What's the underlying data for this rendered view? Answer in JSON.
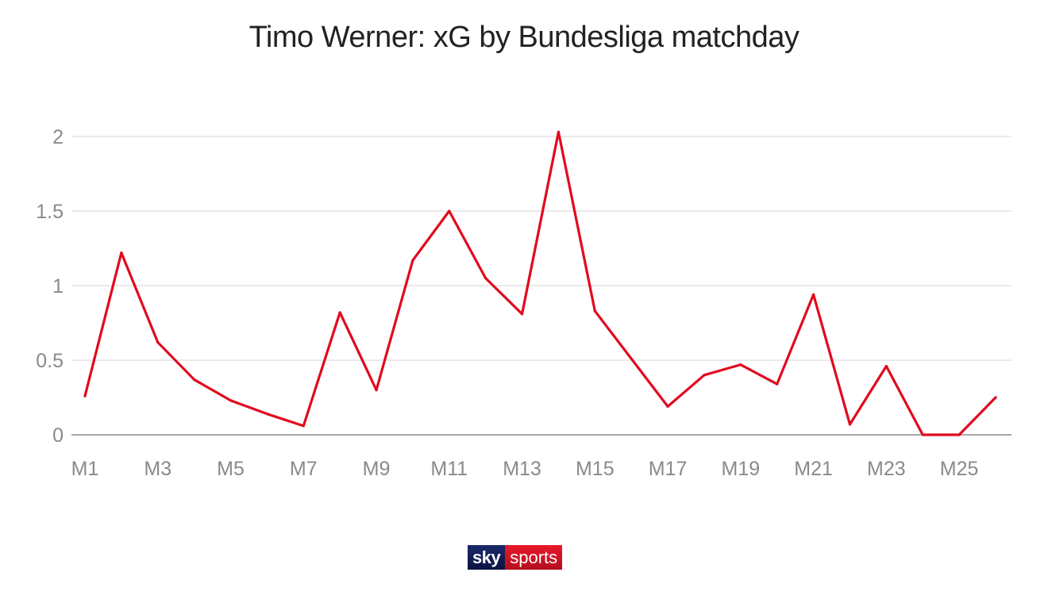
{
  "chart_data": {
    "type": "line",
    "title": "Timo Werner: xG by Bundesliga matchday",
    "xlabel": "",
    "ylabel": "",
    "ylim": [
      0,
      2
    ],
    "yticks": [
      "0",
      "0.5",
      "1",
      "1.5",
      "2"
    ],
    "categories": [
      "M1",
      "M2",
      "M3",
      "M4",
      "M5",
      "M6",
      "M7",
      "M8",
      "M9",
      "M10",
      "M11",
      "M12",
      "M13",
      "M14",
      "M15",
      "M16",
      "M17",
      "M18",
      "M19",
      "M20",
      "M21",
      "M22",
      "M23",
      "M24",
      "M25",
      "M26"
    ],
    "visible_tick_labels": [
      "M1",
      "M3",
      "M5",
      "M7",
      "M9",
      "M11",
      "M13",
      "M15",
      "M17",
      "M19",
      "M21",
      "M23",
      "M25"
    ],
    "series": [
      {
        "values": [
          0.26,
          1.22,
          0.62,
          0.37,
          0.23,
          0.14,
          0.06,
          0.82,
          0.3,
          1.17,
          1.5,
          1.05,
          0.81,
          2.03,
          0.83,
          0.51,
          0.19,
          0.4,
          0.47,
          0.34,
          0.94,
          0.07,
          0.46,
          0.0,
          0.0,
          0.25
        ],
        "color": "#e10a1e"
      }
    ],
    "grid": true,
    "legend": "none"
  },
  "branding": {
    "logo_sky": "sky",
    "logo_sports": "sports",
    "sky_color": "#0f1b52",
    "sports_color": "#d41224"
  }
}
